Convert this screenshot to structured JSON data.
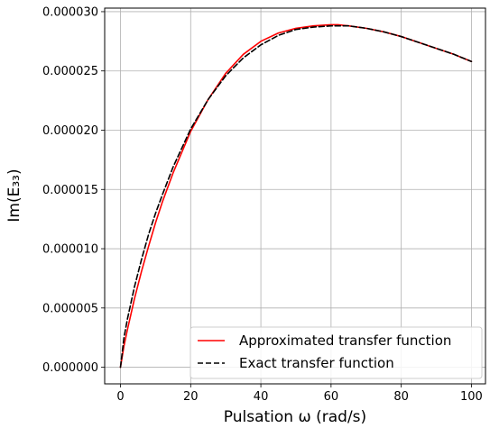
{
  "chart_data": {
    "type": "line",
    "xlabel": "Pulsation ω (rad/s)",
    "ylabel": "Im(E₃₃)",
    "xlim": [
      -4.5,
      104
    ],
    "ylim": [
      -1.4e-06,
      3.03e-05
    ],
    "x_ticks": [
      0,
      20,
      40,
      60,
      80,
      100
    ],
    "x_tick_labels": [
      "0",
      "20",
      "40",
      "60",
      "80",
      "100"
    ],
    "y_ticks": [
      0.0,
      5e-06,
      1e-05,
      1.5e-05,
      2e-05,
      2.5e-05,
      3e-05
    ],
    "y_tick_labels": [
      "0.000000",
      "0.000005",
      "0.000010",
      "0.000015",
      "0.000020",
      "0.000025",
      "0.000030"
    ],
    "grid": true,
    "legend_position": "lower-right",
    "series": [
      {
        "name": "Approximated transfer function",
        "color": "#ff0000",
        "style": "solid",
        "x": [
          0,
          1,
          2,
          4,
          6,
          8,
          10,
          12,
          15,
          20,
          25,
          30,
          35,
          40,
          45,
          50,
          55,
          60,
          62,
          65,
          70,
          75,
          80,
          85,
          90,
          95,
          100
        ],
        "y": [
          0.0,
          1.8e-06,
          3.2e-06,
          5.8e-06,
          8.1e-06,
          1.02e-05,
          1.22e-05,
          1.4e-05,
          1.64e-05,
          1.99e-05,
          2.26e-05,
          2.48e-05,
          2.64e-05,
          2.75e-05,
          2.82e-05,
          2.86e-05,
          2.88e-05,
          2.89e-05,
          2.89e-05,
          2.88e-05,
          2.86e-05,
          2.83e-05,
          2.79e-05,
          2.74e-05,
          2.69e-05,
          2.64e-05,
          2.58e-05
        ]
      },
      {
        "name": "Exact transfer function",
        "color": "#000000",
        "style": "dashed",
        "x": [
          0,
          1,
          2,
          4,
          6,
          8,
          10,
          12,
          15,
          20,
          25,
          30,
          35,
          40,
          45,
          50,
          55,
          60,
          62,
          65,
          70,
          75,
          80,
          85,
          90,
          95,
          100
        ],
        "y": [
          0.0,
          2.5e-06,
          4.1e-06,
          6.8e-06,
          9.1e-06,
          1.12e-05,
          1.3e-05,
          1.46e-05,
          1.69e-05,
          2.01e-05,
          2.26e-05,
          2.46e-05,
          2.61e-05,
          2.72e-05,
          2.8e-05,
          2.85e-05,
          2.87e-05,
          2.88e-05,
          2.88e-05,
          2.88e-05,
          2.86e-05,
          2.83e-05,
          2.79e-05,
          2.74e-05,
          2.69e-05,
          2.64e-05,
          2.58e-05
        ]
      }
    ]
  }
}
